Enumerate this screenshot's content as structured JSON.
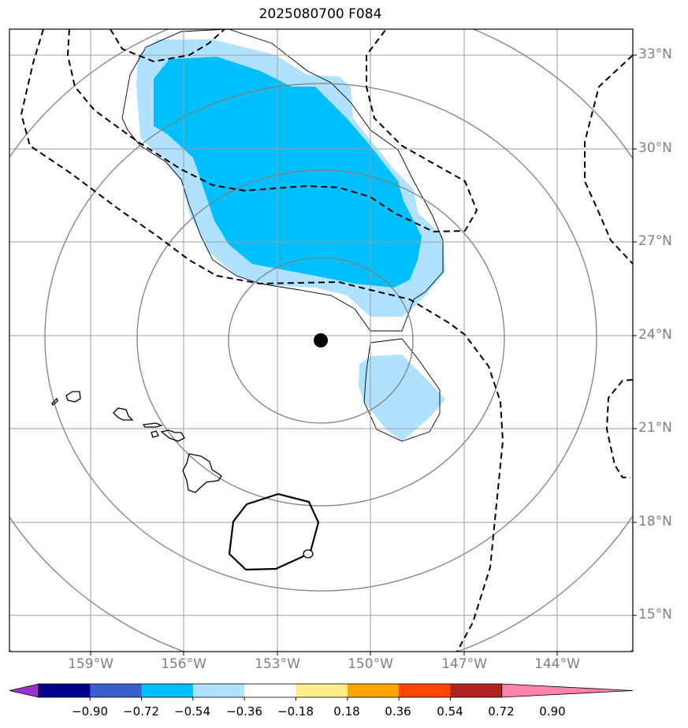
{
  "title": "2025080700 F084",
  "map": {
    "latitude_labels": [
      "33°N",
      "30°N",
      "27°N",
      "24°N",
      "21°N",
      "18°N",
      "15°N"
    ],
    "longitude_labels": [
      "159°W",
      "156°W",
      "153°W",
      "150°W",
      "147°W",
      "144°W"
    ],
    "center_marker": {
      "lat": 24,
      "lon": -151.5
    }
  },
  "colorbar": {
    "tick_labels": [
      "−0.90",
      "−0.72",
      "−0.54",
      "−0.36",
      "−0.18",
      "0.18",
      "0.36",
      "0.54",
      "0.72",
      "0.90"
    ],
    "colors": [
      "#9932cc",
      "#00008b",
      "#3a5fcd",
      "#00bfff",
      "#b0e2ff",
      "#ffffff",
      "#ffec8b",
      "#ffa500",
      "#ff4500",
      "#b22222",
      "#ff82ab"
    ]
  }
}
